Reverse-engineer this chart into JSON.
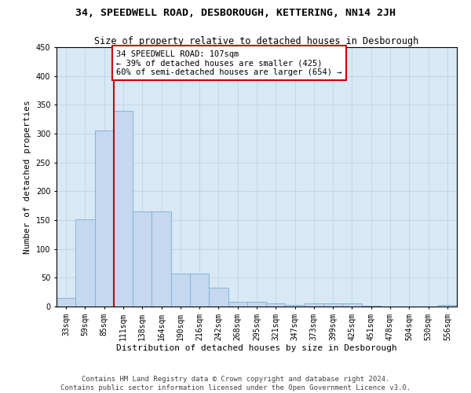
{
  "title_line1": "34, SPEEDWELL ROAD, DESBOROUGH, KETTERING, NN14 2JH",
  "title_line2": "Size of property relative to detached houses in Desborough",
  "xlabel": "Distribution of detached houses by size in Desborough",
  "ylabel": "Number of detached properties",
  "bar_color": "#C5D8EF",
  "bar_edge_color": "#7BAFD4",
  "background_color": "#FFFFFF",
  "plot_bg_color": "#D8E8F5",
  "grid_color": "#BBCFE0",
  "annotation_box_color": "#CC0000",
  "red_line_color": "#CC0000",
  "categories": [
    "33sqm",
    "59sqm",
    "85sqm",
    "111sqm",
    "138sqm",
    "164sqm",
    "190sqm",
    "216sqm",
    "242sqm",
    "268sqm",
    "295sqm",
    "321sqm",
    "347sqm",
    "373sqm",
    "399sqm",
    "425sqm",
    "451sqm",
    "478sqm",
    "504sqm",
    "530sqm",
    "556sqm"
  ],
  "values": [
    15,
    152,
    305,
    340,
    165,
    165,
    57,
    57,
    33,
    8,
    8,
    5,
    3,
    5,
    5,
    5,
    2,
    0,
    0,
    0,
    3
  ],
  "property_index": 3,
  "annotation_line1": "34 SPEEDWELL ROAD: 107sqm",
  "annotation_line2": "← 39% of detached houses are smaller (425)",
  "annotation_line3": "60% of semi-detached houses are larger (654) →",
  "ylim": [
    0,
    450
  ],
  "yticks": [
    0,
    50,
    100,
    150,
    200,
    250,
    300,
    350,
    400,
    450
  ],
  "footer_line1": "Contains HM Land Registry data © Crown copyright and database right 2024.",
  "footer_line2": "Contains public sector information licensed under the Open Government Licence v3.0.",
  "title_fontsize": 9.5,
  "subtitle_fontsize": 8.5,
  "axis_label_fontsize": 8,
  "tick_fontsize": 7,
  "annotation_fontsize": 7.5,
  "footer_fontsize": 6.5
}
